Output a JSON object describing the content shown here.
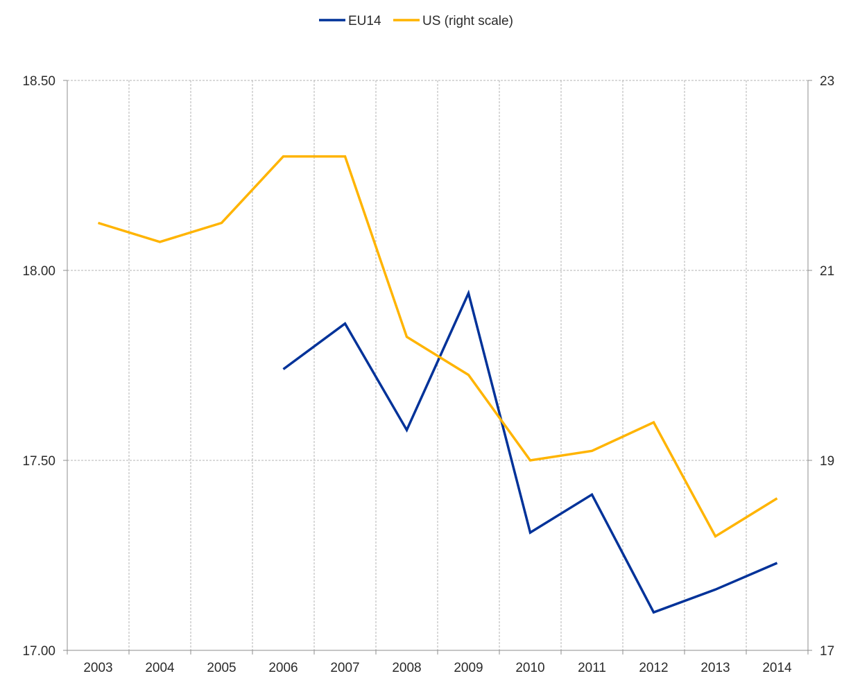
{
  "chart_data": {
    "type": "line",
    "title": "",
    "xlabel": "",
    "ylabel": "",
    "legend_position": "top-center",
    "grid": true,
    "categories": [
      "2003",
      "2004",
      "2005",
      "2006",
      "2007",
      "2008",
      "2009",
      "2010",
      "2011",
      "2012",
      "2013",
      "2014"
    ],
    "y_left": {
      "lim": [
        17.0,
        18.5
      ],
      "ticks": [
        17.0,
        17.5,
        18.0,
        18.5
      ],
      "tick_labels": [
        "17.00",
        "17.50",
        "18.00",
        "18.50"
      ]
    },
    "y_right": {
      "lim": [
        17,
        23
      ],
      "ticks": [
        17,
        19,
        21,
        23
      ],
      "tick_labels": [
        "17",
        "19",
        "21",
        "23"
      ]
    },
    "series": [
      {
        "name": "EU14",
        "axis": "left",
        "color": "#003299",
        "values": [
          null,
          null,
          null,
          17.74,
          17.86,
          17.58,
          17.94,
          17.31,
          17.41,
          17.1,
          17.16,
          17.23
        ]
      },
      {
        "name": "US (right scale)",
        "axis": "right",
        "color": "#FFB400",
        "values": [
          21.5,
          21.3,
          21.5,
          22.2,
          22.2,
          20.3,
          19.9,
          19.0,
          19.1,
          19.4,
          18.2,
          18.6
        ]
      }
    ]
  }
}
